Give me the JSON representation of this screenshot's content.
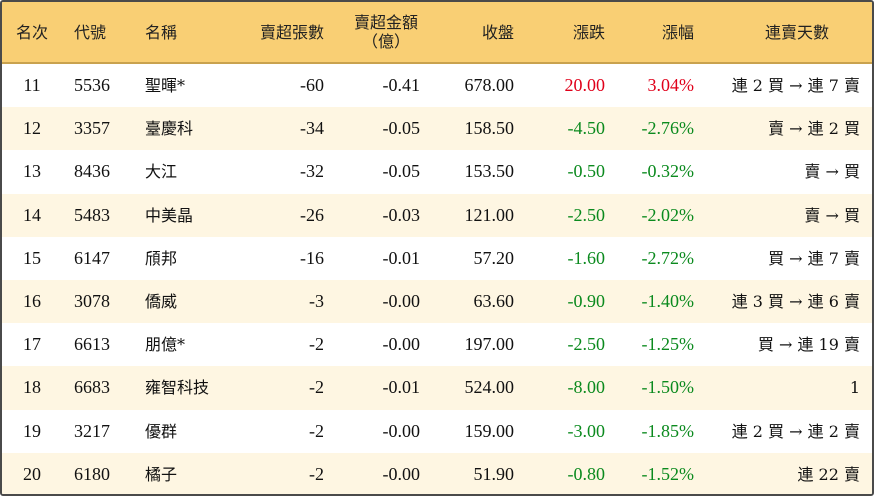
{
  "table": {
    "header": [
      "名次",
      "代號",
      "名稱",
      "賣超張數",
      "賣超金額\n（億）",
      "收盤",
      "漲跌",
      "漲幅",
      "連賣天數"
    ],
    "rows": [
      [
        "11",
        "5536",
        "聖暉*",
        "-60",
        "-0.41",
        "678.00",
        "20.00",
        "3.04%",
        "連 2 買 → 連 7 賣"
      ],
      [
        "12",
        "3357",
        "臺慶科",
        "-34",
        "-0.05",
        "158.50",
        "-4.50",
        "-2.76%",
        "賣 → 連 2 買"
      ],
      [
        "13",
        "8436",
        "大江",
        "-32",
        "-0.05",
        "153.50",
        "-0.50",
        "-0.32%",
        "賣 → 買"
      ],
      [
        "14",
        "5483",
        "中美晶",
        "-26",
        "-0.03",
        "121.00",
        "-2.50",
        "-2.02%",
        "賣 → 買"
      ],
      [
        "15",
        "6147",
        "頎邦",
        "-16",
        "-0.01",
        "57.20",
        "-1.60",
        "-2.72%",
        "買 → 連 7 賣"
      ],
      [
        "16",
        "3078",
        "僑威",
        "-3",
        "-0.00",
        "63.60",
        "-0.90",
        "-1.40%",
        "連 3 買 → 連 6 賣"
      ],
      [
        "17",
        "6613",
        "朋億*",
        "-2",
        "-0.00",
        "197.00",
        "-2.50",
        "-1.25%",
        "買 → 連 19 賣"
      ],
      [
        "18",
        "6683",
        "雍智科技",
        "-2",
        "-0.01",
        "524.00",
        "-8.00",
        "-1.50%",
        "1"
      ],
      [
        "19",
        "3217",
        "優群",
        "-2",
        "-0.00",
        "159.00",
        "-3.00",
        "-1.85%",
        "連 2 買 → 連 2 賣"
      ],
      [
        "20",
        "6180",
        "橘子",
        "-2",
        "-0.00",
        "51.90",
        "-0.80",
        "-1.52%",
        "連 22 賣"
      ]
    ]
  }
}
